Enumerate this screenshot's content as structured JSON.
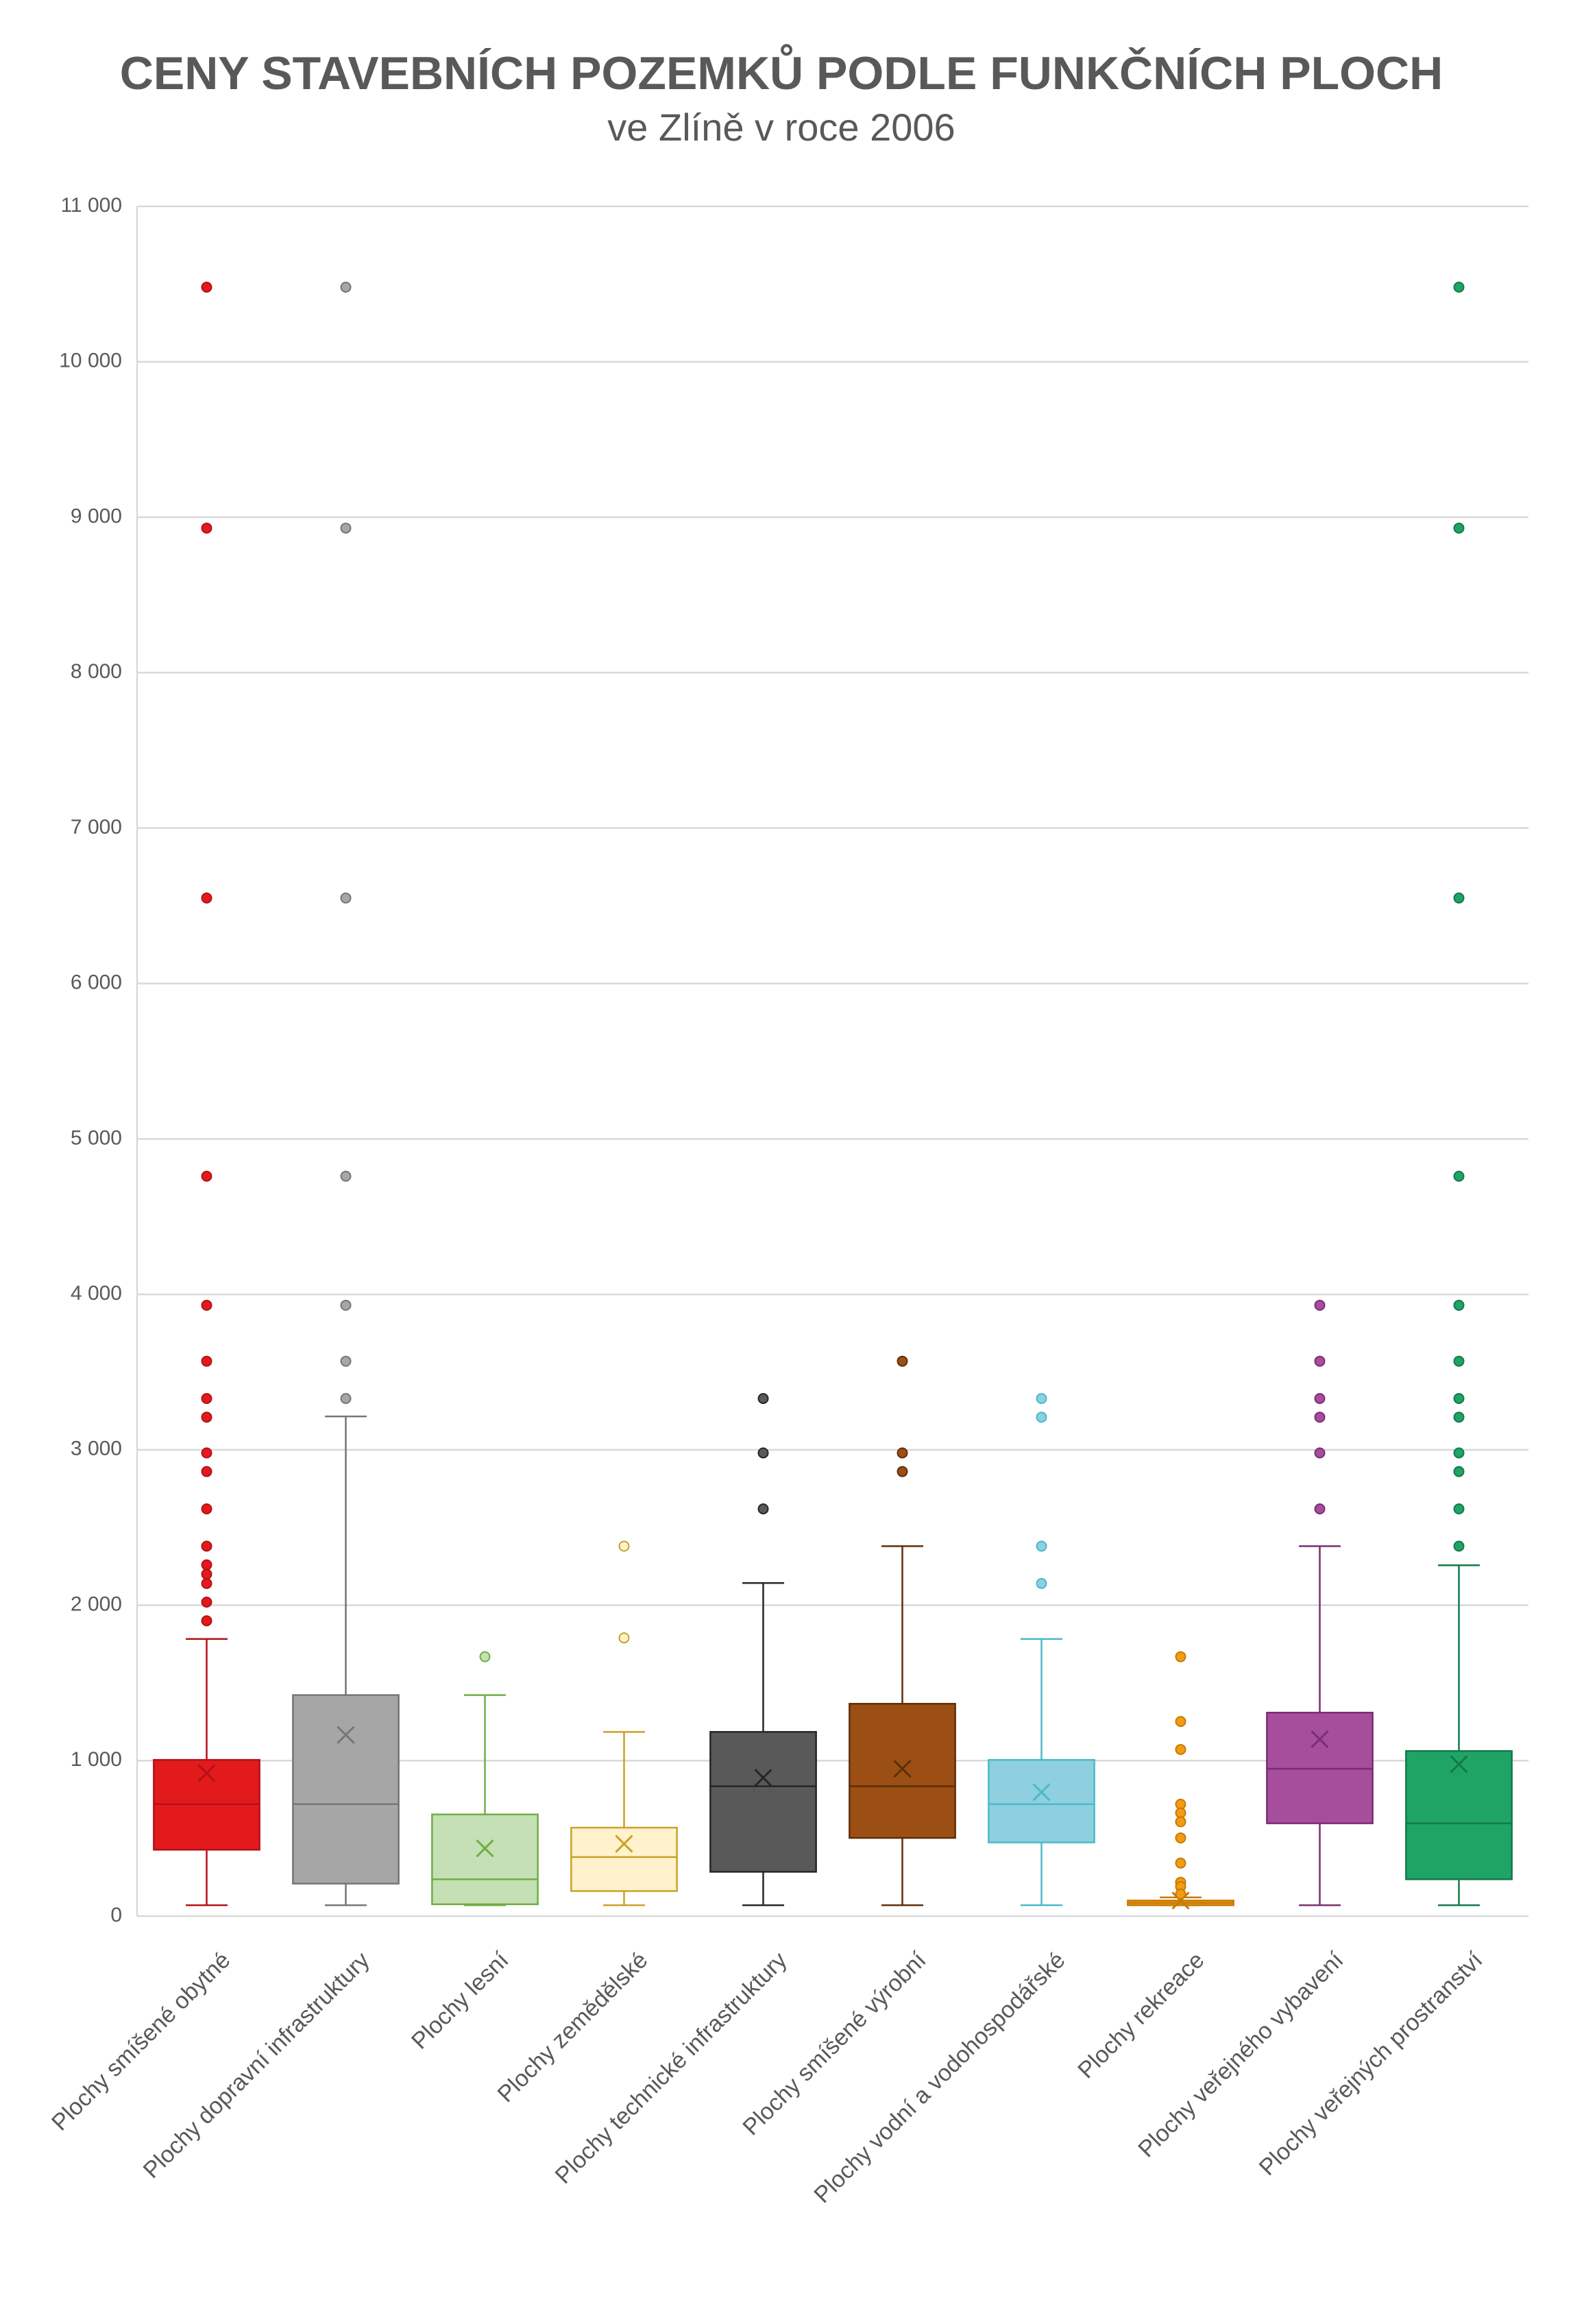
{
  "chart_data": {
    "type": "box",
    "title": "CENY STAVEBNÍCH POZEMKŮ PODLE FUNKČNÍCH PLOCH",
    "subtitle": "ve Zlíně v roce 2006",
    "categories": [
      "Plochy smíšené obytné",
      "Plochy dopravní infrastruktury",
      "Plochy lesní",
      "Plochy zemědělské",
      "Plochy technické infrastruktury",
      "Plochy smíšené výrobní",
      "Plochy vodní a vodohospodářské",
      "Plochy rekreace",
      "Plochy veřejného vybavení",
      "Plochy veřejných prostranství"
    ],
    "boxes": [
      {
        "color": "#e31a1c",
        "edge_color": "#b3111a",
        "whisker_low": 70,
        "q1": 427,
        "median": 720,
        "q3": 1005,
        "whisker_high": 1783,
        "mean": 920,
        "outliers": [
          10480,
          8930,
          6550,
          4760,
          3930,
          3570,
          3330,
          3210,
          2980,
          2860,
          2620,
          2380,
          2260,
          2200,
          2140,
          2020,
          1900
        ]
      },
      {
        "color": "#a6a6a6",
        "edge_color": "#767676",
        "whisker_low": 70,
        "q1": 209,
        "median": 720,
        "q3": 1422,
        "whisker_high": 3215,
        "mean": 1166,
        "outliers": [
          10480,
          8930,
          6550,
          4760,
          3930,
          3570,
          3330
        ]
      },
      {
        "color": "#c5e0b4",
        "edge_color": "#70ad47",
        "whisker_low": 70,
        "q1": 76,
        "median": 237,
        "q3": 654,
        "whisker_high": 1422,
        "mean": 436,
        "outliers": [
          1669
        ]
      },
      {
        "color": "#fff2cc",
        "edge_color": "#c9a227",
        "whisker_low": 70,
        "q1": 161,
        "median": 380,
        "q3": 569,
        "whisker_high": 1185,
        "mean": 465,
        "outliers": [
          1790,
          2380
        ]
      },
      {
        "color": "#595959",
        "edge_color": "#262626",
        "whisker_low": 70,
        "q1": 285,
        "median": 835,
        "q3": 1185,
        "whisker_high": 2143,
        "mean": 890,
        "outliers": [
          2620,
          2980,
          3330
        ]
      },
      {
        "color": "#9c4f14",
        "edge_color": "#5e2e0a",
        "whisker_low": 70,
        "q1": 503,
        "median": 835,
        "q3": 1366,
        "whisker_high": 2380,
        "mean": 948,
        "outliers": [
          2860,
          2980,
          3570
        ]
      },
      {
        "color": "#8ecfe0",
        "edge_color": "#4bbac8",
        "whisker_low": 70,
        "q1": 474,
        "median": 720,
        "q3": 1005,
        "whisker_high": 1783,
        "mean": 797,
        "outliers": [
          2140,
          2380,
          3210,
          3330
        ]
      },
      {
        "color": "#f39c12",
        "edge_color": "#c77a06",
        "whisker_low": 70,
        "q1": 70,
        "median": 85,
        "q3": 100,
        "whisker_high": 120,
        "mean": 100,
        "outliers": [
          1669,
          1252,
          1072,
          720,
          664,
          607,
          503,
          341,
          218,
          190,
          142
        ]
      },
      {
        "color": "#a64d9c",
        "edge_color": "#7a2f72",
        "whisker_low": 70,
        "q1": 597,
        "median": 948,
        "q3": 1309,
        "whisker_high": 2380,
        "mean": 1138,
        "outliers": [
          2620,
          2980,
          3210,
          3330,
          3570,
          3930
        ]
      },
      {
        "color": "#1fa466",
        "edge_color": "#127a4a",
        "whisker_low": 70,
        "q1": 237,
        "median": 597,
        "q3": 1062,
        "whisker_high": 2257,
        "mean": 977,
        "outliers": [
          2380,
          2620,
          2860,
          2980,
          3210,
          3330,
          3570,
          3930,
          4760,
          6550,
          8930,
          10480
        ]
      }
    ],
    "ylim": [
      0,
      11000
    ],
    "yticks": [
      0,
      {
        "value": 1000,
        "label": "1 000"
      },
      {
        "value": 2000,
        "label": "2 000"
      },
      {
        "value": 3000,
        "label": "3 000"
      },
      {
        "value": 4000,
        "label": "4 000"
      },
      {
        "value": 5000,
        "label": "5 000"
      },
      {
        "value": 6000,
        "label": "6 000"
      },
      {
        "value": 7000,
        "label": "7 000"
      },
      {
        "value": 8000,
        "label": "8 000"
      },
      {
        "value": 9000,
        "label": "9 000"
      },
      {
        "value": 10000,
        "label": "10 000"
      },
      {
        "value": 11000,
        "label": "11 000"
      }
    ],
    "grid": true
  }
}
